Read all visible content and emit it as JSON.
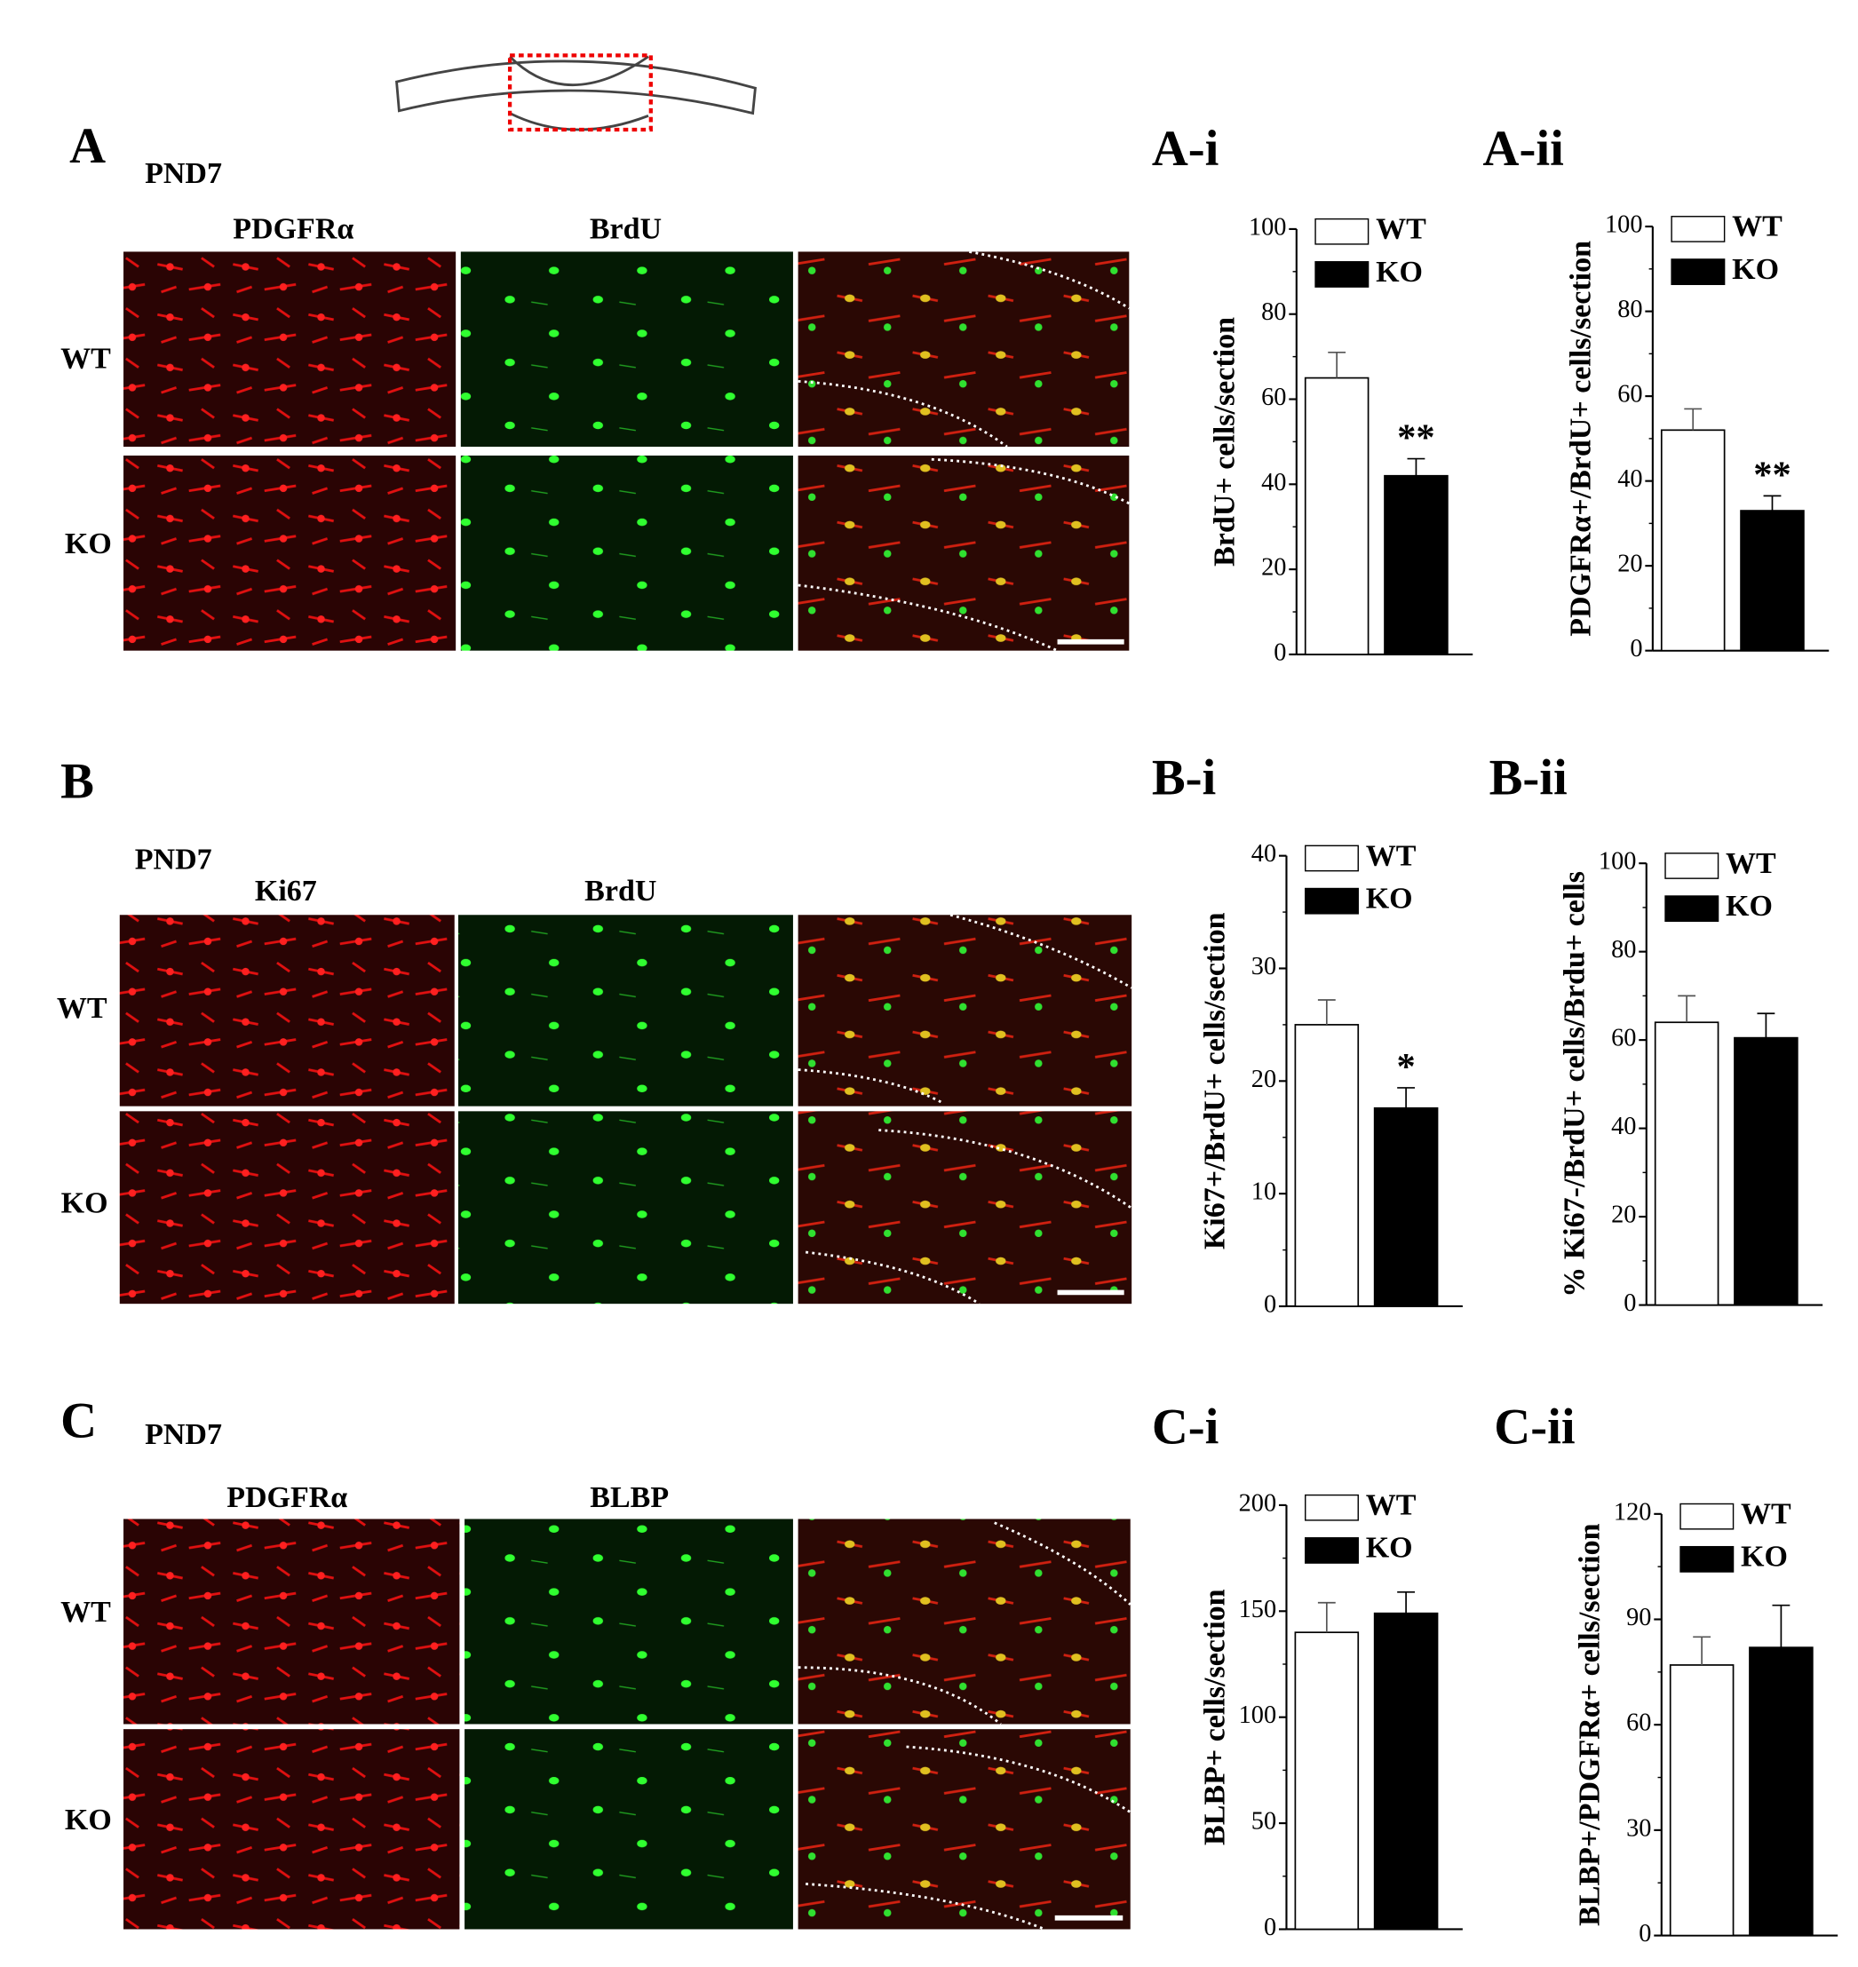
{
  "figure": {
    "panels": [
      {
        "label": "A",
        "stage": "PND7",
        "channels": [
          "PDGFRα",
          "BrdU"
        ],
        "rows": [
          "WT",
          "KO"
        ]
      },
      {
        "label": "B",
        "stage": "PND7",
        "channels": [
          "Ki67",
          "BrdU"
        ],
        "rows": [
          "WT",
          "KO"
        ]
      },
      {
        "label": "C",
        "stage": "PND7",
        "channels": [
          "PDGFRα",
          "BLBP"
        ],
        "rows": [
          "WT",
          "KO"
        ]
      }
    ]
  },
  "chart_data": [
    {
      "type": "bar",
      "panel_label": "A-i",
      "y_label": "BrdU+ cells/section",
      "ylim": [
        0,
        100
      ],
      "yticks": [
        0,
        20,
        40,
        60,
        80,
        100
      ],
      "annotation": "**",
      "series": [
        {
          "name": "WT",
          "color": "#ffffff",
          "values": [
            65
          ],
          "errors": [
            6
          ]
        },
        {
          "name": "KO",
          "color": "#000000",
          "values": [
            42
          ],
          "errors": [
            4
          ]
        }
      ]
    },
    {
      "type": "bar",
      "panel_label": "A-ii",
      "y_label": "PDGFRα+/BrdU+ cells/section",
      "ylim": [
        0,
        100
      ],
      "yticks": [
        0,
        20,
        40,
        60,
        80,
        100
      ],
      "annotation": "**",
      "series": [
        {
          "name": "WT",
          "color": "#ffffff",
          "values": [
            52
          ],
          "errors": [
            5
          ]
        },
        {
          "name": "KO",
          "color": "#000000",
          "values": [
            33
          ],
          "errors": [
            3.5
          ]
        }
      ]
    },
    {
      "type": "bar",
      "panel_label": "B-i",
      "y_label": "Ki67+/BrdU+ cells/section",
      "ylim": [
        0,
        40
      ],
      "yticks": [
        0,
        10,
        20,
        30,
        40
      ],
      "annotation": "*",
      "series": [
        {
          "name": "WT",
          "color": "#ffffff",
          "values": [
            25
          ],
          "errors": [
            2.2
          ]
        },
        {
          "name": "KO",
          "color": "#000000",
          "values": [
            17.6
          ],
          "errors": [
            1.8
          ]
        }
      ]
    },
    {
      "type": "bar",
      "panel_label": "B-ii",
      "y_label": "% Ki67-/BrdU+ cells/Brdu+ cells",
      "ylim": [
        0,
        100
      ],
      "yticks": [
        0,
        20,
        40,
        60,
        80,
        100
      ],
      "series": [
        {
          "name": "WT",
          "color": "#ffffff",
          "values": [
            64
          ],
          "errors": [
            6
          ]
        },
        {
          "name": "KO",
          "color": "#000000",
          "values": [
            60.5
          ],
          "errors": [
            5.5
          ]
        }
      ]
    },
    {
      "type": "bar",
      "panel_label": "C-i",
      "y_label": "BLBP+ cells/section",
      "ylim": [
        0,
        200
      ],
      "yticks": [
        0,
        50,
        100,
        150,
        200
      ],
      "series": [
        {
          "name": "WT",
          "color": "#ffffff",
          "values": [
            140
          ],
          "errors": [
            14
          ]
        },
        {
          "name": "KO",
          "color": "#000000",
          "values": [
            149
          ],
          "errors": [
            10
          ]
        }
      ]
    },
    {
      "type": "bar",
      "panel_label": "C-ii",
      "y_label": "BLBP+/PDGFRα+ cells/section",
      "ylim": [
        0,
        120
      ],
      "yticks": [
        0,
        30,
        60,
        90,
        120
      ],
      "series": [
        {
          "name": "WT",
          "color": "#ffffff",
          "values": [
            77
          ],
          "errors": [
            8
          ]
        },
        {
          "name": "KO",
          "color": "#000000",
          "values": [
            82
          ],
          "errors": [
            12
          ]
        }
      ]
    }
  ]
}
